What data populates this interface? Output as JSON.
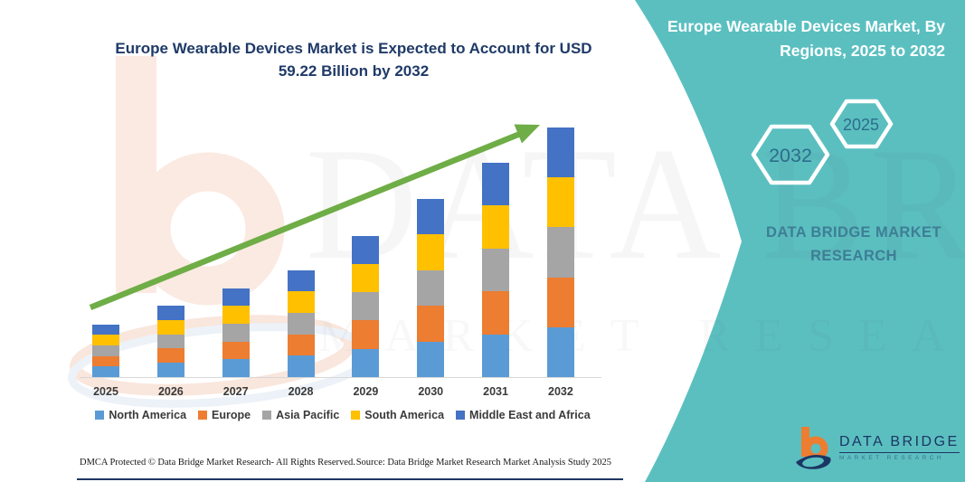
{
  "page": {
    "title": "Europe Wearable Devices Market is Expected to Account for USD 59.22 Billion by 2032"
  },
  "panel": {
    "background_color": "#5BBFC0",
    "title_line1": "Europe Wearable Devices Market, By",
    "title_line2": "Regions, 2025 to 2032",
    "hexagons": {
      "large": "2032",
      "small": "2025"
    },
    "brand_line1": "DATA BRIDGE MARKET",
    "brand_line2": "RESEARCH",
    "logo_name": "DATA BRIDGE",
    "logo_subtext": "MARKET RESEARCH",
    "logo_orange": "#ED7D31",
    "logo_navy": "#1C3664",
    "text_color": "#3E7E96"
  },
  "watermark": {
    "line1": "DATA BRIDGE",
    "line2": "MARKET RESEARCH"
  },
  "footer": {
    "left": "DMCA Protected © Data Bridge Market Research-  All Rights Reserved.",
    "right": "Source: Data Bridge Market Research  Market Analysis Study 2025"
  },
  "chart_data": {
    "type": "bar",
    "stacked": true,
    "title": "Europe Wearable Devices Market is Expected to Account for USD 59.22 Billion by 2032",
    "unit": "USD Billion",
    "categories": [
      "2025",
      "2026",
      "2027",
      "2028",
      "2029",
      "2030",
      "2031",
      "2032"
    ],
    "series": [
      {
        "name": "North America",
        "color": "#5B9BD5",
        "values": [
          2.5,
          3.4,
          4.22,
          5.08,
          6.72,
          8.48,
          10.18,
          11.84
        ]
      },
      {
        "name": "Europe",
        "color": "#ED7D31",
        "values": [
          2.5,
          3.4,
          4.22,
          5.08,
          6.72,
          8.48,
          10.18,
          11.85
        ]
      },
      {
        "name": "Asia Pacific",
        "color": "#A5A5A5",
        "values": [
          2.5,
          3.4,
          4.22,
          5.08,
          6.72,
          8.48,
          10.18,
          11.85
        ]
      },
      {
        "name": "South America",
        "color": "#FFC000",
        "values": [
          2.5,
          3.4,
          4.22,
          5.08,
          6.72,
          8.48,
          10.18,
          11.84
        ]
      },
      {
        "name": "Middle East and Africa",
        "color": "#4472C4",
        "values": [
          2.5,
          3.4,
          4.22,
          5.08,
          6.72,
          8.48,
          10.18,
          11.84
        ]
      }
    ],
    "totals": [
      12.5,
      17.0,
      21.1,
      25.4,
      33.6,
      42.4,
      50.9,
      59.22
    ],
    "highlight_total_2032": 59.22,
    "ylim": [
      0,
      60
    ],
    "grid": false,
    "y_axis_visible": false,
    "legend_position": "bottom",
    "annotations": [
      "green upward growth trend arrow from 2025 to 2032"
    ],
    "arrow_color": "#6FAD47"
  }
}
